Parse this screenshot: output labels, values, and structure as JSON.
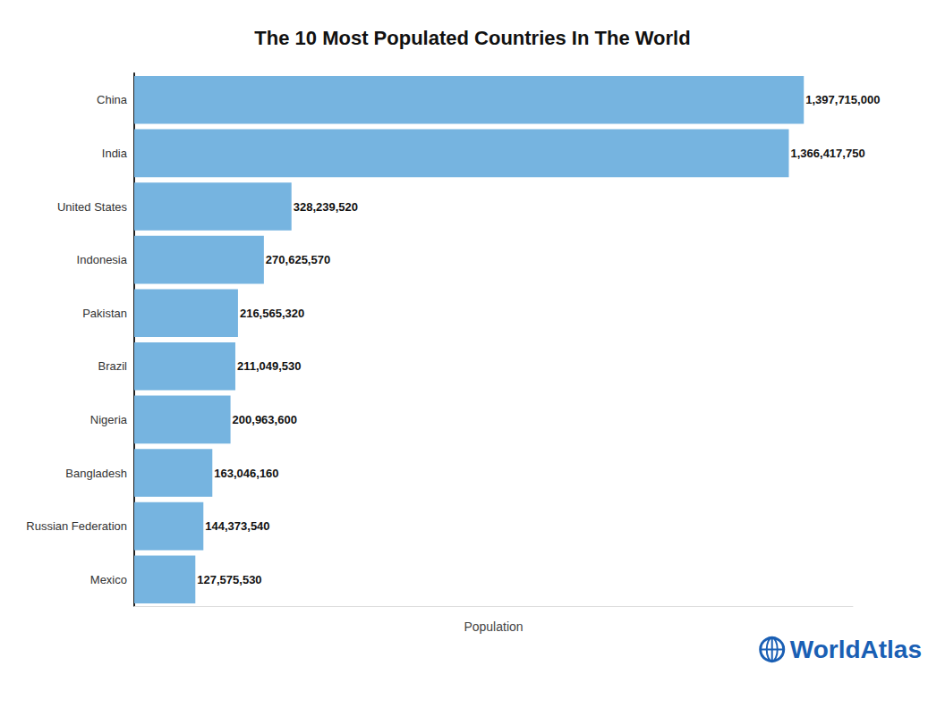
{
  "chart_data": {
    "type": "bar",
    "title": "The 10 Most Populated Countries In The World",
    "orientation": "horizontal",
    "categories": [
      "China",
      "India",
      "United States",
      "Indonesia",
      "Pakistan",
      "Brazil",
      "Nigeria",
      "Bangladesh",
      "Russian Federation",
      "Mexico"
    ],
    "values": [
      1397715000,
      1366417750,
      328239520,
      270625570,
      216565320,
      211049530,
      200963600,
      163046160,
      144373540,
      127575530
    ],
    "value_labels": [
      "1,397,715,000",
      "1,366,417,750",
      "328,239,520",
      "270,625,570",
      "216,565,320",
      "211,049,530",
      "200,963,600",
      "163,046,160",
      "144,373,540",
      "127,575,530"
    ],
    "color": "#76b4e0",
    "xlabel": "Population",
    "xlim": [
      0,
      1500000000
    ],
    "tick_labels": false,
    "data_labels": true,
    "grid": false,
    "annotation": "WorldAtlas"
  }
}
